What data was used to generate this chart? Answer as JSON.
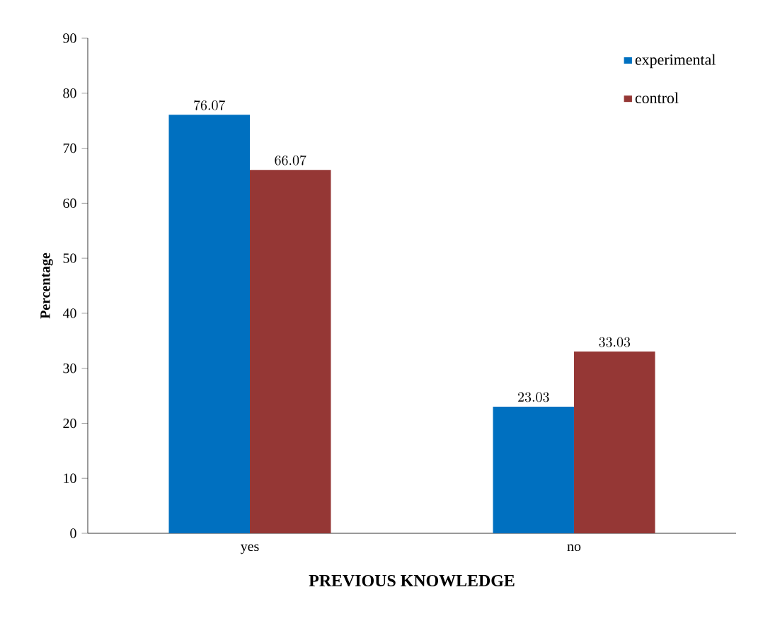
{
  "chart_data": {
    "type": "bar",
    "xlabel": "PREVIOUS KNOWLEDGE",
    "ylabel": "Percentage",
    "categories": [
      "yes",
      "no"
    ],
    "series": [
      {
        "name": "experimental",
        "color": "#0070c0",
        "values": [
          76.07,
          23.03
        ]
      },
      {
        "name": "control",
        "color": "#953735",
        "values": [
          66.07,
          33.03
        ]
      }
    ],
    "ylim": [
      0,
      90
    ],
    "yticks": [
      0,
      10,
      20,
      30,
      40,
      50,
      60,
      70,
      80,
      90
    ],
    "data_labels": true,
    "legend": "top right",
    "grid": false
  }
}
